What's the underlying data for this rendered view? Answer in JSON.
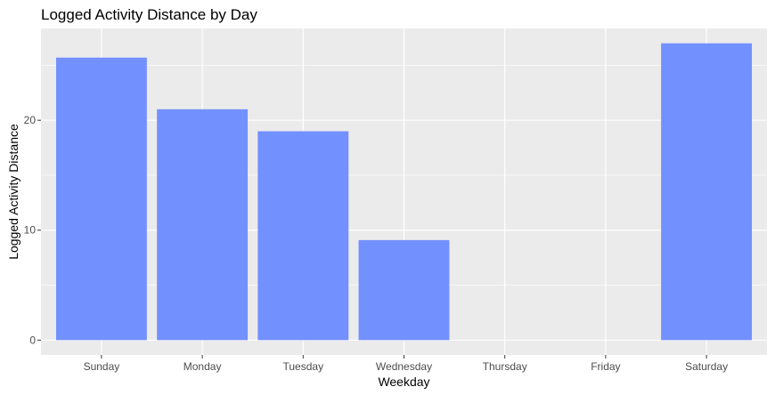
{
  "chart_data": {
    "type": "bar",
    "title": "Logged Activity Distance by Day",
    "xlabel": "Weekday",
    "ylabel": "Logged Activity Distance",
    "categories": [
      "Sunday",
      "Monday",
      "Tuesday",
      "Wednesday",
      "Thursday",
      "Friday",
      "Saturday"
    ],
    "values": [
      25.7,
      21.0,
      19.0,
      9.1,
      0,
      0,
      27.0
    ],
    "y_ticks": [
      0,
      10,
      20
    ],
    "ylim": [
      -1.35,
      28.35
    ],
    "grid": true,
    "bar_color": "#7390FF",
    "panel_background": "#EBEBEB",
    "grid_color": "#FFFFFF"
  }
}
